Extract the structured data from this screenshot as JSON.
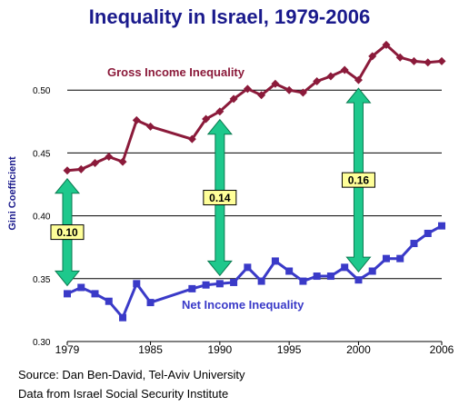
{
  "title": "Inequality in Israel, 1979-2006",
  "source_line": "Source: Dan Ben-David, Tel-Aviv University",
  "data_line": "Data from  Israel Social Security Institute",
  "chart_data": {
    "type": "line",
    "title": "Inequality in Israel, 1979-2006",
    "xlabel": "",
    "ylabel": "Gini Coefficient",
    "xlim": [
      1979,
      2006
    ],
    "ylim": [
      0.3,
      0.55
    ],
    "x_ticks": [
      1979,
      1985,
      1990,
      1995,
      2000,
      2006
    ],
    "y_ticks": [
      "0.30",
      "0.35",
      "0.40",
      "0.45",
      "0.50"
    ],
    "grid": true,
    "series": [
      {
        "name": "Gross Income Inequality",
        "color": "#8b1a3a",
        "x": [
          1979,
          1980,
          1981,
          1982,
          1983,
          1984,
          1985,
          1988,
          1989,
          1990,
          1991,
          1992,
          1993,
          1994,
          1995,
          1996,
          1997,
          1998,
          1999,
          2000,
          2001,
          2002,
          2003,
          2004,
          2005,
          2006
        ],
        "y": [
          0.436,
          0.437,
          0.442,
          0.447,
          0.443,
          0.476,
          0.471,
          0.461,
          0.477,
          0.483,
          0.493,
          0.501,
          0.496,
          0.505,
          0.5,
          0.498,
          0.507,
          0.511,
          0.516,
          0.508,
          0.527,
          0.536,
          0.526,
          0.523,
          0.522,
          0.523
        ]
      },
      {
        "name": "Net Income Inequality",
        "color": "#3a3ac8",
        "x": [
          1979,
          1980,
          1981,
          1982,
          1983,
          1984,
          1985,
          1988,
          1989,
          1990,
          1991,
          1992,
          1993,
          1994,
          1995,
          1996,
          1997,
          1998,
          1999,
          2000,
          2001,
          2002,
          2003,
          2004,
          2005,
          2006
        ],
        "y": [
          0.338,
          0.343,
          0.338,
          0.332,
          0.319,
          0.346,
          0.331,
          0.342,
          0.345,
          0.346,
          0.347,
          0.359,
          0.348,
          0.364,
          0.356,
          0.348,
          0.352,
          0.352,
          0.359,
          0.349,
          0.356,
          0.366,
          0.366,
          0.378,
          0.386,
          0.392
        ]
      }
    ],
    "gap_annotations": [
      {
        "year": 1979,
        "gap": "0.10",
        "top": 0.436,
        "bottom": 0.338
      },
      {
        "year": 1990,
        "gap": "0.14",
        "top": 0.483,
        "bottom": 0.346
      },
      {
        "year": 2000,
        "gap": "0.16",
        "top": 0.508,
        "bottom": 0.349
      }
    ],
    "arrow_color": "#1ec88c",
    "label_box_color": "#ffff99"
  }
}
